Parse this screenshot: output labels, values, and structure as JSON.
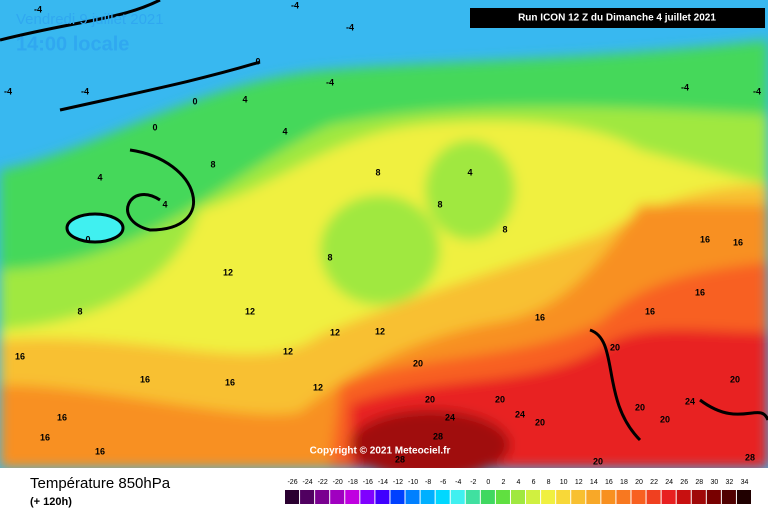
{
  "header": {
    "valid_date": "Vendredi 9 juillet 2021",
    "local_time": "14:00 locale",
    "run": "Run ICON 12 Z du Dimanche 4 juillet 2021"
  },
  "copyright": "Copyright © 2021 Meteociel.fr",
  "footer": {
    "parameter": "Température 850hPa",
    "lead_time": "(+ 120h)"
  },
  "legend": {
    "labels": [
      -26,
      -24,
      -22,
      -20,
      -18,
      -16,
      -14,
      -12,
      -10,
      -8,
      -6,
      -4,
      -2,
      0,
      2,
      4,
      6,
      8,
      10,
      12,
      14,
      16,
      18,
      20,
      22,
      24,
      26,
      28,
      30,
      32,
      34
    ],
    "colors": [
      "#2a0030",
      "#500060",
      "#7a0090",
      "#a000c0",
      "#c000e0",
      "#8000ff",
      "#4000ff",
      "#0040ff",
      "#0080ff",
      "#00b0ff",
      "#00d8ff",
      "#40f0f0",
      "#40e0a0",
      "#40d860",
      "#60e040",
      "#a0e840",
      "#d0f040",
      "#f0f040",
      "#f8d838",
      "#f8c030",
      "#f8a828",
      "#f89020",
      "#f87820",
      "#f86020",
      "#f04020",
      "#e82020",
      "#c81010",
      "#a00808",
      "#780000",
      "#500000",
      "#200000"
    ]
  },
  "contour_labels": [
    -4,
    -4,
    -4,
    -4,
    -4,
    -4,
    -4,
    -4,
    0,
    0,
    0,
    0,
    4,
    4,
    4,
    4,
    4,
    8,
    8,
    8,
    8,
    8,
    8,
    12,
    12,
    12,
    12,
    12,
    12,
    16,
    16,
    16,
    16,
    16,
    16,
    16,
    16,
    16,
    16,
    16,
    20,
    20,
    20,
    20,
    20,
    20,
    20,
    20,
    20,
    24,
    24,
    24,
    28,
    28,
    28
  ]
}
